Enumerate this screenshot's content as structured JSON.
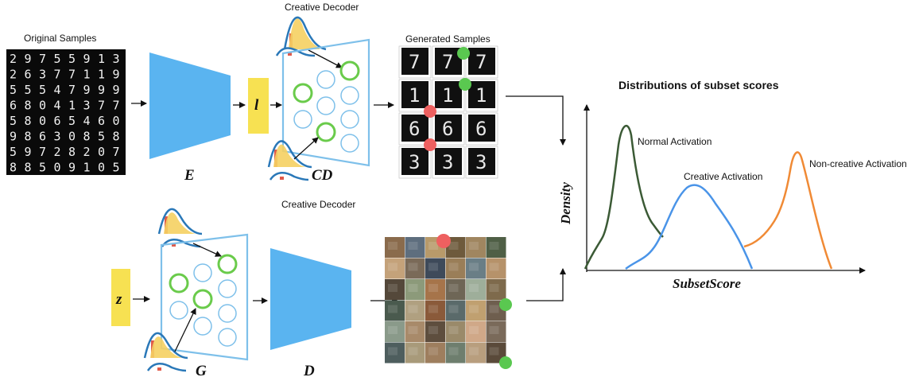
{
  "top": {
    "original_samples_label": "Original Samples",
    "digit_grid": [
      "29755913",
      "26377119",
      "55547999",
      "68041377",
      "58065460",
      "98630858",
      "59728207",
      "88509105"
    ],
    "encoder_label": "E",
    "latent_label": "l",
    "decoder_title": "Creative Decoder",
    "decoder_label": "CD",
    "generated_samples_label": "Generated Samples",
    "generated_digits": [
      "7",
      "7",
      "7",
      "1",
      "1",
      "1",
      "6",
      "6",
      "6",
      "3",
      "3",
      "3"
    ]
  },
  "bottom": {
    "noise_label": "z",
    "decoder_title": "Creative Decoder",
    "generator_label": "G",
    "discriminator_label": "D"
  },
  "chart": {
    "title": "Distributions of subset scores",
    "xlabel": "SubsetScore",
    "ylabel": "Density",
    "curves": [
      {
        "name": "Normal Activation",
        "color": "#3b5a35"
      },
      {
        "name": "Creative Activation",
        "color": "#4a94e8"
      },
      {
        "name": "Non-creative Activation",
        "color": "#f08a35"
      }
    ]
  },
  "colors": {
    "blue_block": "#5ab4f0",
    "yellow_block": "#f7e152",
    "node_outline": "#7ec0ea",
    "active_node": "#6acb4b",
    "green_marker": "#5ac850",
    "red_marker": "#ee6060"
  }
}
